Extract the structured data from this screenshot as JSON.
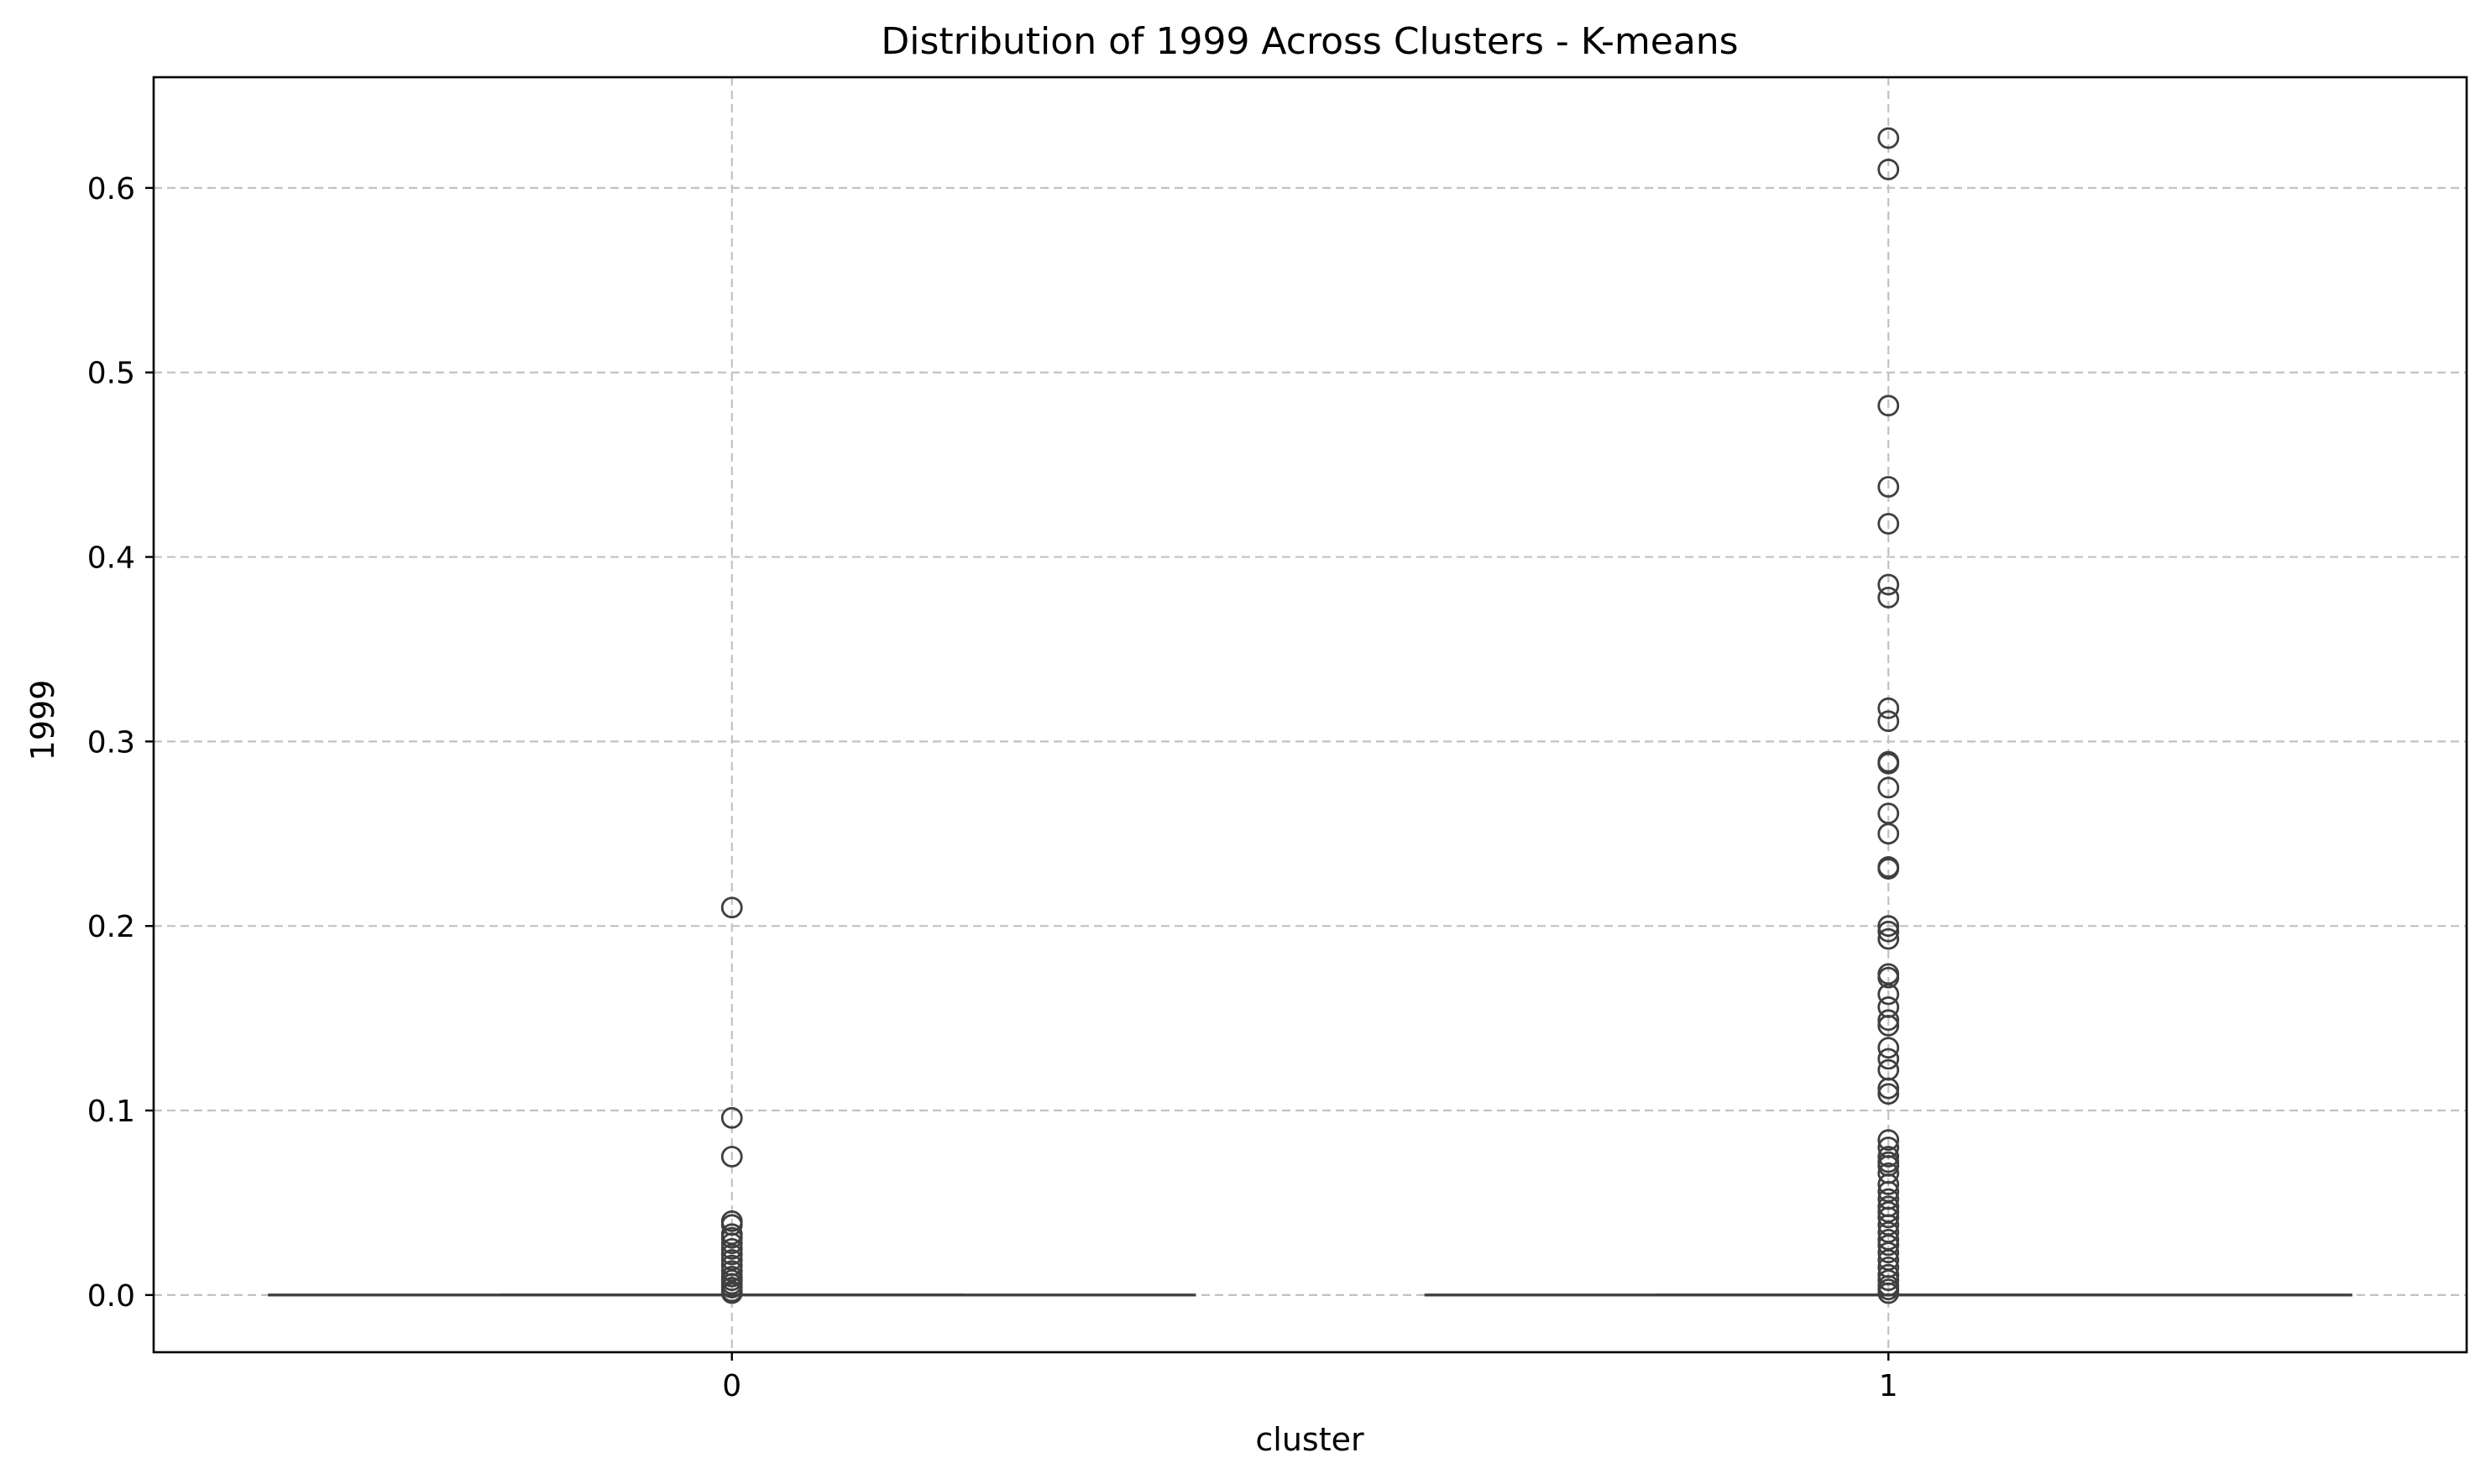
{
  "chart_data": {
    "type": "box",
    "title": "Distribution of 1999 Across Clusters - K-means",
    "xlabel": "cluster",
    "ylabel": "1999",
    "categories": [
      "0",
      "1"
    ],
    "ylim": [
      -0.031,
      0.66
    ],
    "yticks": [
      0.0,
      0.1,
      0.2,
      0.3,
      0.4,
      0.5,
      0.6
    ],
    "ytick_labels": [
      "0.0",
      "0.1",
      "0.2",
      "0.3",
      "0.4",
      "0.5",
      "0.6"
    ],
    "grid": true,
    "box_color": "#3f3f3f",
    "series": [
      {
        "category": "0",
        "q1": 0.0,
        "median": 0.0,
        "q3": 0.0,
        "whisker_low": 0.0,
        "whisker_high": 0.0,
        "outliers": [
          0.21,
          0.096,
          0.075,
          0.04,
          0.038,
          0.033,
          0.031,
          0.028,
          0.025,
          0.022,
          0.019,
          0.016,
          0.013,
          0.01,
          0.008,
          0.006,
          0.004,
          0.002,
          0.001
        ]
      },
      {
        "category": "1",
        "q1": 0.0,
        "median": 0.0,
        "q3": 0.0,
        "whisker_low": 0.0,
        "whisker_high": 0.0,
        "outliers": [
          0.627,
          0.61,
          0.482,
          0.438,
          0.418,
          0.385,
          0.378,
          0.318,
          0.311,
          0.289,
          0.288,
          0.275,
          0.261,
          0.25,
          0.232,
          0.231,
          0.2,
          0.197,
          0.193,
          0.174,
          0.172,
          0.163,
          0.156,
          0.149,
          0.146,
          0.134,
          0.128,
          0.122,
          0.112,
          0.109,
          0.084,
          0.08,
          0.075,
          0.072,
          0.07,
          0.066,
          0.06,
          0.056,
          0.052,
          0.048,
          0.045,
          0.042,
          0.038,
          0.034,
          0.03,
          0.027,
          0.023,
          0.019,
          0.015,
          0.011,
          0.008,
          0.005,
          0.003,
          0.001
        ]
      }
    ]
  }
}
